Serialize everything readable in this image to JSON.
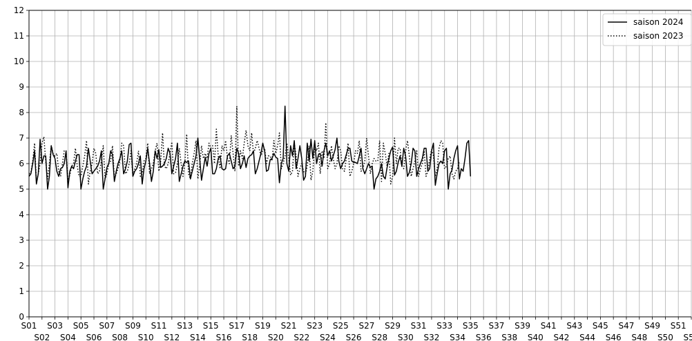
{
  "chart_data": {
    "type": "line",
    "title": "",
    "xlabel": "",
    "ylabel": "",
    "ylim": [
      0,
      12
    ],
    "y_ticks": [
      0,
      1,
      2,
      3,
      4,
      5,
      6,
      7,
      8,
      9,
      10,
      11,
      12
    ],
    "x_tick_labels": [
      "S01",
      "S02",
      "S03",
      "S04",
      "S05",
      "S06",
      "S07",
      "S08",
      "S09",
      "S10",
      "S11",
      "S12",
      "S13",
      "S14",
      "S15",
      "S16",
      "S17",
      "S18",
      "S19",
      "S20",
      "S21",
      "S22",
      "S23",
      "S24",
      "S25",
      "S26",
      "S27",
      "S28",
      "S29",
      "S30",
      "S31",
      "S32",
      "S33",
      "S34",
      "S35",
      "S36",
      "S37",
      "S38",
      "S39",
      "S40",
      "S41",
      "S42",
      "S43",
      "S44",
      "S45",
      "S46",
      "S47",
      "S48",
      "S49",
      "S50",
      "S51",
      "S52"
    ],
    "grid": true,
    "legend_position": "top-right",
    "series": [
      {
        "name": "saison 2024",
        "style": "solid",
        "color": "#000000",
        "weekly_values": [
          [
            5.5,
            5.6,
            6.0,
            6.5,
            5.2,
            5.6,
            6.95
          ],
          [
            6.0,
            6.3,
            6.3,
            5.0,
            5.5,
            6.7,
            6.35
          ],
          [
            6.2,
            5.7,
            5.5,
            5.8,
            5.85,
            6.0,
            6.5
          ],
          [
            5.05,
            5.7,
            5.9,
            5.8,
            6.1,
            6.35,
            6.35
          ],
          [
            5.0,
            5.4,
            5.7,
            5.9,
            6.6,
            6.1,
            5.6
          ],
          [
            5.7,
            5.8,
            5.9,
            6.1,
            6.5,
            5.0,
            5.4
          ],
          [
            5.85,
            6.0,
            6.5,
            6.35,
            5.3,
            5.7,
            6.0
          ],
          [
            6.2,
            6.5,
            5.6,
            5.8,
            6.1,
            6.75,
            6.8
          ],
          [
            5.5,
            5.7,
            5.8,
            6.0,
            6.3,
            5.2,
            5.8
          ],
          [
            6.1,
            6.6,
            6.0,
            5.3,
            5.7,
            6.5,
            6.2
          ],
          [
            6.55,
            5.85,
            5.9,
            6.0,
            6.2,
            6.6,
            6.4
          ],
          [
            5.6,
            5.9,
            6.2,
            6.8,
            5.3,
            5.6,
            5.9
          ],
          [
            6.1,
            6.05,
            6.1,
            5.4,
            5.7,
            6.0,
            6.3
          ],
          [
            7.0,
            6.2,
            5.35,
            5.8,
            6.25,
            5.9,
            6.4
          ],
          [
            6.6,
            5.6,
            5.6,
            5.8,
            6.2,
            6.3,
            5.8
          ],
          [
            5.75,
            5.8,
            6.3,
            6.4,
            6.1,
            5.8,
            5.9
          ],
          [
            6.6,
            6.4,
            5.8,
            6.0,
            6.3,
            5.85,
            6.2
          ],
          [
            6.3,
            6.35,
            6.5,
            5.6,
            5.8,
            6.1,
            6.4
          ],
          [
            6.8,
            6.5,
            5.7,
            5.75,
            6.15,
            6.2,
            6.4
          ],
          [
            6.25,
            6.2,
            5.25,
            6.0,
            6.2,
            8.25,
            6.0
          ],
          [
            5.7,
            6.7,
            6.3,
            6.9,
            5.8,
            6.2,
            6.7
          ],
          [
            6.2,
            5.35,
            5.5,
            6.8,
            6.1,
            6.95,
            6.2
          ],
          [
            6.9,
            6.0,
            6.35,
            6.4,
            5.9,
            6.5,
            6.8
          ],
          [
            6.3,
            6.5,
            6.1,
            6.3,
            6.55,
            7.0,
            6.1
          ],
          [
            5.8,
            6.0,
            6.1,
            6.35,
            6.6,
            6.6,
            6.1
          ],
          [
            6.05,
            6.05,
            6.0,
            6.3,
            6.6,
            5.8,
            5.6
          ],
          [
            5.8,
            6.0,
            5.85,
            5.9,
            5.0,
            5.4,
            5.5
          ],
          [
            5.7,
            6.0,
            5.5,
            5.4,
            5.85,
            6.2,
            6.5
          ],
          [
            6.65,
            5.55,
            5.7,
            6.05,
            6.3,
            5.9,
            6.6
          ],
          [
            6.3,
            5.5,
            5.65,
            6.0,
            6.6,
            6.5,
            5.5
          ],
          [
            5.8,
            6.0,
            6.2,
            6.6,
            6.6,
            5.7,
            5.8
          ],
          [
            6.5,
            6.8,
            5.15,
            5.6,
            6.0,
            6.1,
            6.0
          ],
          [
            6.5,
            6.6,
            5.0,
            5.6,
            5.75,
            6.2,
            6.5
          ],
          [
            6.7,
            5.4,
            5.8,
            5.7,
            6.2,
            6.8,
            6.9
          ],
          [
            5.5
          ]
        ]
      },
      {
        "name": "saison 2023",
        "style": "dotted",
        "color": "#000000",
        "weekly_values": [
          [
            5.6,
            5.65,
            6.1,
            6.8,
            5.3,
            5.6,
            6.0
          ],
          [
            6.8,
            7.05,
            6.1,
            5.4,
            6.0,
            6.7,
            6.4
          ],
          [
            6.3,
            6.4,
            5.7,
            5.5,
            6.0,
            6.5,
            6.5
          ],
          [
            5.3,
            5.55,
            5.9,
            6.0,
            6.6,
            5.9,
            5.5
          ],
          [
            5.5,
            5.9,
            6.3,
            6.9,
            5.2,
            5.7,
            6.0
          ],
          [
            6.6,
            6.4,
            5.6,
            5.7,
            6.1,
            6.7,
            5.4
          ],
          [
            5.6,
            6.0,
            6.1,
            6.7,
            5.4,
            5.6,
            5.8
          ],
          [
            6.1,
            6.8,
            6.7,
            5.6,
            5.7,
            6.0,
            6.5
          ],
          [
            5.5,
            5.8,
            6.0,
            6.5,
            5.5,
            5.6,
            6.1
          ],
          [
            6.2,
            6.8,
            5.6,
            5.8,
            6.0,
            6.5,
            6.8
          ],
          [
            5.7,
            6.1,
            7.2,
            5.9,
            5.8,
            6.0,
            6.4
          ],
          [
            6.85,
            5.6,
            5.65,
            6.0,
            6.6,
            6.0,
            5.5
          ],
          [
            6.0,
            7.15,
            5.6,
            5.4,
            6.0,
            6.4,
            6.9
          ],
          [
            5.4,
            5.9,
            6.7,
            6.2,
            6.4,
            6.2,
            6.8
          ],
          [
            6.6,
            6.7,
            6.0,
            7.35,
            6.3,
            5.8,
            6.7
          ],
          [
            6.5,
            6.9,
            6.2,
            6.0,
            7.1,
            6.4,
            5.7
          ],
          [
            8.25,
            5.9,
            6.5,
            6.2,
            6.8,
            7.3,
            6.7
          ],
          [
            6.5,
            7.2,
            6.4,
            6.6,
            6.9,
            6.6,
            6.3
          ],
          [
            6.5,
            6.6,
            6.0,
            6.3,
            6.3,
            6.1,
            6.9
          ],
          [
            6.4,
            6.7,
            7.2,
            5.8,
            6.0,
            6.3,
            6.8
          ],
          [
            6.2,
            5.55,
            5.7,
            6.8,
            6.3,
            5.5,
            5.8
          ],
          [
            6.0,
            5.7,
            5.6,
            5.9,
            6.7,
            5.35,
            5.7
          ],
          [
            6.7,
            6.5,
            6.8,
            5.6,
            6.5,
            6.2,
            7.6
          ],
          [
            5.8,
            6.0,
            6.7,
            6.2,
            5.8,
            6.0,
            6.7
          ],
          [
            6.5,
            5.8,
            5.7,
            6.2,
            6.8,
            5.5,
            5.7
          ],
          [
            6.0,
            6.5,
            6.4,
            6.9,
            5.7,
            5.8,
            6.1
          ],
          [
            7.0,
            6.3,
            5.6,
            6.0,
            6.2,
            6.1,
            6.1
          ],
          [
            6.9,
            5.3,
            6.8,
            6.4,
            5.9,
            6.4,
            5.2
          ],
          [
            5.5,
            7.0,
            6.0,
            6.6,
            6.6,
            5.9,
            5.8
          ],
          [
            6.5,
            6.9,
            6.3,
            5.5,
            5.8,
            6.1,
            6.5
          ],
          [
            5.5,
            5.8,
            6.0,
            6.5,
            5.5,
            5.7,
            6.2
          ],
          [
            6.55,
            6.3,
            5.5,
            5.8,
            6.6,
            6.9,
            6.8
          ],
          [
            5.8,
            5.9,
            6.2,
            6.3,
            5.6,
            5.4,
            5.7
          ],
          [
            5.8,
            6.1
          ]
        ]
      }
    ]
  }
}
